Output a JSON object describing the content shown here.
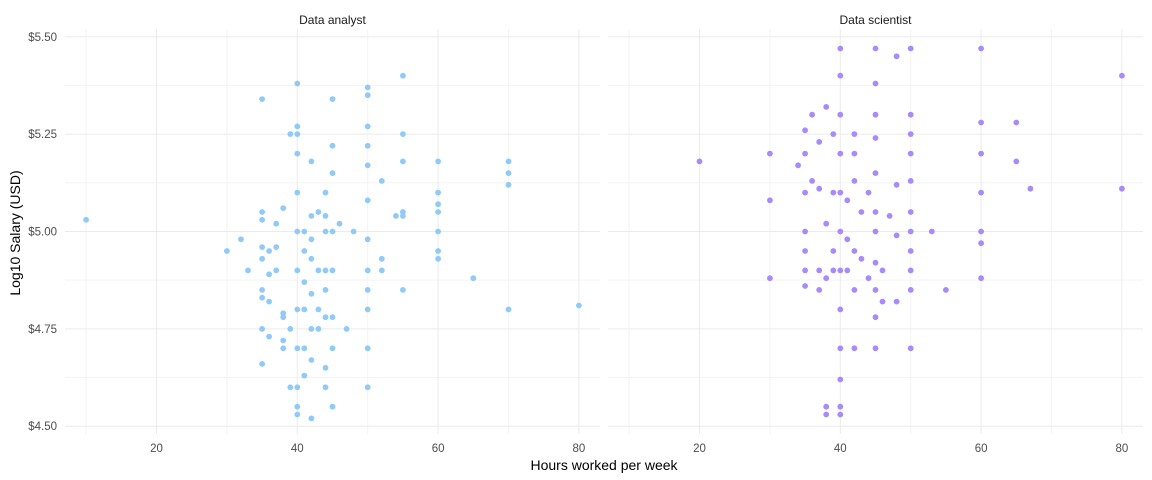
{
  "chart_data": {
    "type": "scatter",
    "xlabel": "Hours worked per week",
    "ylabel": "Log10 Salary (USD)",
    "xlim": [
      7,
      83
    ],
    "ylim": [
      4.48,
      5.52
    ],
    "x_ticks": [
      20,
      40,
      60,
      80
    ],
    "y_ticks": [
      4.5,
      4.75,
      5.0,
      5.25,
      5.5
    ],
    "y_tick_labels": [
      "$4.50",
      "$4.75",
      "$5.00",
      "$5.25",
      "$5.50"
    ],
    "grid": true,
    "legend": "none",
    "panels": [
      {
        "title": "Data analyst",
        "color": "#90CAF9",
        "points": [
          [
            10,
            5.03
          ],
          [
            30,
            4.95
          ],
          [
            32,
            4.98
          ],
          [
            33,
            4.9
          ],
          [
            35,
            5.34
          ],
          [
            35,
            5.05
          ],
          [
            35,
            5.03
          ],
          [
            35,
            4.96
          ],
          [
            35,
            4.93
          ],
          [
            35,
            4.85
          ],
          [
            35,
            4.83
          ],
          [
            35,
            4.75
          ],
          [
            35,
            4.66
          ],
          [
            36,
            4.95
          ],
          [
            36,
            4.89
          ],
          [
            36,
            4.82
          ],
          [
            36,
            4.73
          ],
          [
            37,
            5.02
          ],
          [
            37,
            4.96
          ],
          [
            37,
            4.9
          ],
          [
            38,
            5.06
          ],
          [
            38,
            4.79
          ],
          [
            38,
            4.78
          ],
          [
            38,
            4.72
          ],
          [
            38,
            4.7
          ],
          [
            39,
            5.25
          ],
          [
            39,
            4.6
          ],
          [
            39,
            4.75
          ],
          [
            40,
            5.38
          ],
          [
            40,
            5.27
          ],
          [
            40,
            5.25
          ],
          [
            40,
            5.2
          ],
          [
            40,
            5.1
          ],
          [
            40,
            5.0
          ],
          [
            40,
            4.9
          ],
          [
            40,
            4.8
          ],
          [
            40,
            4.7
          ],
          [
            40,
            4.6
          ],
          [
            40,
            4.55
          ],
          [
            40,
            4.53
          ],
          [
            41,
            5.0
          ],
          [
            41,
            4.95
          ],
          [
            41,
            4.87
          ],
          [
            41,
            4.8
          ],
          [
            41,
            4.7
          ],
          [
            41,
            4.63
          ],
          [
            42,
            5.18
          ],
          [
            42,
            5.04
          ],
          [
            42,
            4.98
          ],
          [
            42,
            4.93
          ],
          [
            42,
            4.84
          ],
          [
            42,
            4.75
          ],
          [
            42,
            4.67
          ],
          [
            42,
            4.52
          ],
          [
            43,
            5.05
          ],
          [
            43,
            4.9
          ],
          [
            43,
            4.8
          ],
          [
            43,
            4.75
          ],
          [
            44,
            5.1
          ],
          [
            44,
            5.04
          ],
          [
            44,
            5.0
          ],
          [
            44,
            4.9
          ],
          [
            44,
            4.85
          ],
          [
            44,
            4.78
          ],
          [
            44,
            4.65
          ],
          [
            44,
            4.6
          ],
          [
            45,
            5.34
          ],
          [
            45,
            5.22
          ],
          [
            45,
            5.15
          ],
          [
            45,
            5.0
          ],
          [
            45,
            4.9
          ],
          [
            45,
            4.78
          ],
          [
            45,
            4.7
          ],
          [
            45,
            4.55
          ],
          [
            46,
            5.02
          ],
          [
            47,
            4.75
          ],
          [
            48,
            5.0
          ],
          [
            50,
            5.37
          ],
          [
            50,
            5.35
          ],
          [
            50,
            5.27
          ],
          [
            50,
            5.22
          ],
          [
            50,
            5.17
          ],
          [
            50,
            5.08
          ],
          [
            50,
            4.98
          ],
          [
            50,
            4.9
          ],
          [
            50,
            4.85
          ],
          [
            50,
            4.8
          ],
          [
            50,
            4.7
          ],
          [
            50,
            4.6
          ],
          [
            52,
            5.13
          ],
          [
            52,
            4.93
          ],
          [
            52,
            4.9
          ],
          [
            54,
            5.04
          ],
          [
            55,
            5.4
          ],
          [
            55,
            5.25
          ],
          [
            55,
            5.18
          ],
          [
            55,
            5.05
          ],
          [
            55,
            5.04
          ],
          [
            55,
            4.85
          ],
          [
            60,
            5.18
          ],
          [
            60,
            5.1
          ],
          [
            60,
            5.07
          ],
          [
            60,
            5.05
          ],
          [
            60,
            5.0
          ],
          [
            60,
            4.95
          ],
          [
            60,
            4.93
          ],
          [
            65,
            4.88
          ],
          [
            70,
            5.18
          ],
          [
            70,
            5.15
          ],
          [
            70,
            5.12
          ],
          [
            70,
            4.8
          ],
          [
            80,
            4.81
          ]
        ]
      },
      {
        "title": "Data scientist",
        "color": "#A78BFA",
        "points": [
          [
            20,
            5.18
          ],
          [
            30,
            5.2
          ],
          [
            30,
            5.08
          ],
          [
            30,
            4.88
          ],
          [
            34,
            5.17
          ],
          [
            35,
            5.26
          ],
          [
            35,
            5.2
          ],
          [
            35,
            5.1
          ],
          [
            35,
            5.0
          ],
          [
            35,
            4.95
          ],
          [
            35,
            4.9
          ],
          [
            35,
            4.86
          ],
          [
            36,
            5.3
          ],
          [
            36,
            5.13
          ],
          [
            37,
            5.23
          ],
          [
            37,
            5.11
          ],
          [
            37,
            4.9
          ],
          [
            37,
            4.85
          ],
          [
            38,
            5.32
          ],
          [
            38,
            5.02
          ],
          [
            38,
            4.88
          ],
          [
            38,
            4.55
          ],
          [
            38,
            4.53
          ],
          [
            39,
            5.25
          ],
          [
            39,
            5.1
          ],
          [
            39,
            4.95
          ],
          [
            39,
            4.9
          ],
          [
            40,
            5.47
          ],
          [
            40,
            5.4
          ],
          [
            40,
            5.3
          ],
          [
            40,
            5.2
          ],
          [
            40,
            5.1
          ],
          [
            40,
            5.0
          ],
          [
            40,
            4.9
          ],
          [
            40,
            4.8
          ],
          [
            40,
            4.7
          ],
          [
            40,
            4.62
          ],
          [
            40,
            4.55
          ],
          [
            40,
            4.53
          ],
          [
            41,
            5.08
          ],
          [
            41,
            4.98
          ],
          [
            41,
            4.9
          ],
          [
            42,
            5.25
          ],
          [
            42,
            5.2
          ],
          [
            42,
            5.13
          ],
          [
            42,
            4.95
          ],
          [
            42,
            4.85
          ],
          [
            42,
            4.7
          ],
          [
            43,
            5.05
          ],
          [
            43,
            4.93
          ],
          [
            44,
            5.1
          ],
          [
            44,
            4.88
          ],
          [
            45,
            5.47
          ],
          [
            45,
            5.38
          ],
          [
            45,
            5.3
          ],
          [
            45,
            5.24
          ],
          [
            45,
            5.15
          ],
          [
            45,
            5.05
          ],
          [
            45,
            5.0
          ],
          [
            45,
            4.92
          ],
          [
            45,
            4.85
          ],
          [
            45,
            4.78
          ],
          [
            45,
            4.7
          ],
          [
            46,
            4.9
          ],
          [
            46,
            4.82
          ],
          [
            47,
            5.04
          ],
          [
            48,
            5.45
          ],
          [
            48,
            5.12
          ],
          [
            48,
            4.99
          ],
          [
            48,
            4.82
          ],
          [
            50,
            5.47
          ],
          [
            50,
            5.3
          ],
          [
            50,
            5.25
          ],
          [
            50,
            5.2
          ],
          [
            50,
            5.13
          ],
          [
            50,
            5.05
          ],
          [
            50,
            5.0
          ],
          [
            50,
            4.95
          ],
          [
            50,
            4.9
          ],
          [
            50,
            4.85
          ],
          [
            50,
            4.7
          ],
          [
            53,
            5.0
          ],
          [
            55,
            4.85
          ],
          [
            60,
            5.47
          ],
          [
            60,
            5.28
          ],
          [
            60,
            5.2
          ],
          [
            60,
            5.1
          ],
          [
            60,
            5.0
          ],
          [
            60,
            4.97
          ],
          [
            60,
            4.88
          ],
          [
            65,
            5.28
          ],
          [
            65,
            5.18
          ],
          [
            67,
            5.11
          ],
          [
            80,
            5.4
          ],
          [
            80,
            5.11
          ]
        ]
      }
    ]
  }
}
